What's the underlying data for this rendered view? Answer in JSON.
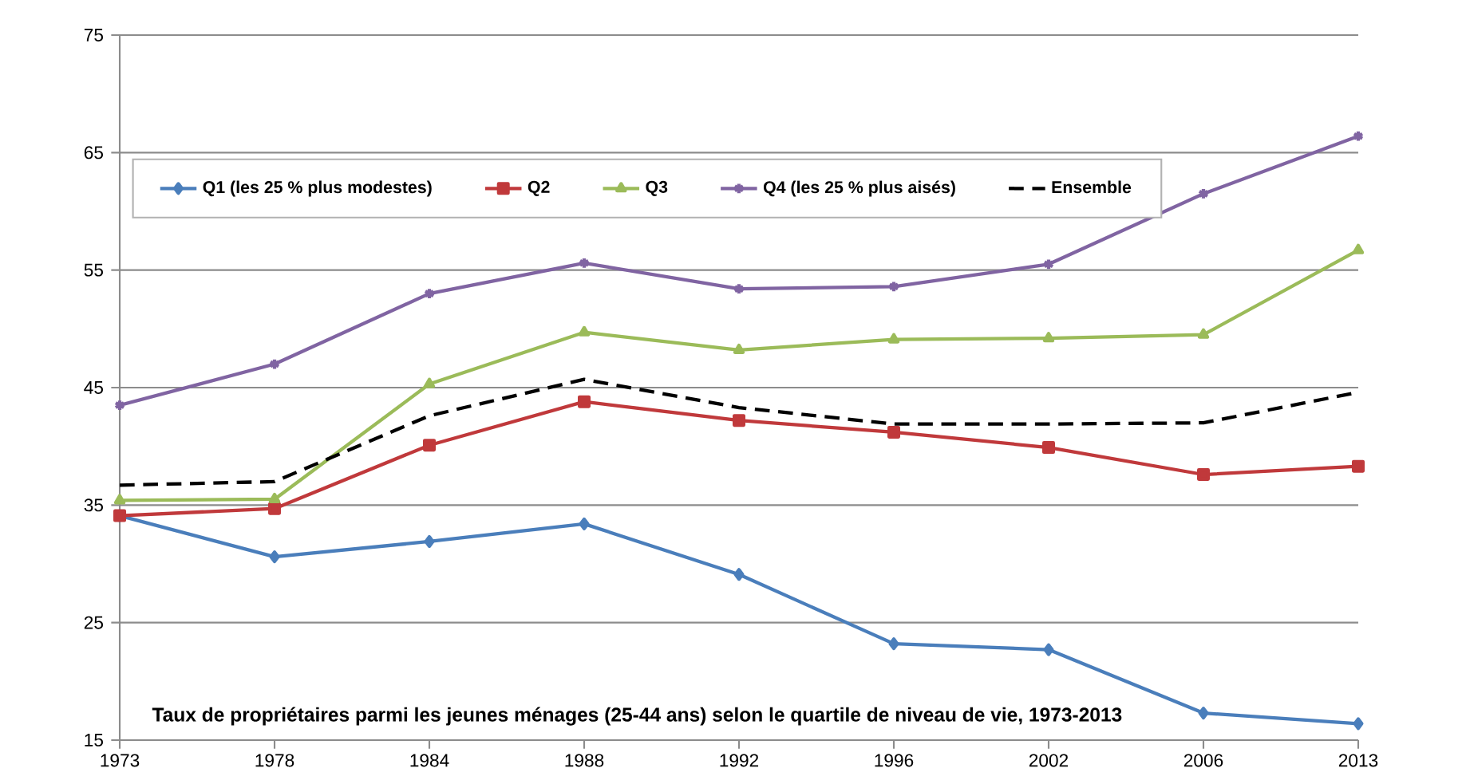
{
  "chart_data": {
    "type": "line",
    "title": "Taux de propriétaires parmi les jeunes ménages (25-44 ans) selon le quartile de niveau de vie, 1973-2013",
    "categories": [
      "1973",
      "1978",
      "1984",
      "1988",
      "1992",
      "1996",
      "2002",
      "2006",
      "2013"
    ],
    "series": [
      {
        "name": "Q1 (les 25 % plus modestes)",
        "color": "#4a7ebb",
        "marker": "diamond",
        "values": [
          34.1,
          30.6,
          31.9,
          33.4,
          29.1,
          23.2,
          22.7,
          17.3,
          16.4
        ]
      },
      {
        "name": "Q2",
        "color": "#c0393b",
        "marker": "square",
        "values": [
          34.1,
          34.7,
          40.1,
          43.8,
          42.2,
          41.2,
          39.9,
          37.6,
          38.3
        ]
      },
      {
        "name": "Q3",
        "color": "#9bbb59",
        "marker": "triangle",
        "values": [
          35.4,
          35.5,
          45.3,
          49.7,
          48.2,
          49.1,
          49.2,
          49.5,
          56.7
        ]
      },
      {
        "name": "Q4 (les 25 % plus aisés)",
        "color": "#8064a2",
        "marker": "cross",
        "values": [
          43.5,
          47.0,
          53.0,
          55.6,
          53.4,
          53.6,
          55.5,
          61.5,
          66.4
        ]
      },
      {
        "name": "Ensemble",
        "color": "#000000",
        "marker": "none",
        "line_style": "dashed",
        "values": [
          36.7,
          37.0,
          42.6,
          45.7,
          43.3,
          41.9,
          41.9,
          42.0,
          44.6
        ]
      }
    ],
    "ylim": [
      15,
      75
    ],
    "yticks": [
      15,
      25,
      35,
      45,
      55,
      65,
      75
    ],
    "grid": "y",
    "legend": "top",
    "line_style": "solid"
  }
}
